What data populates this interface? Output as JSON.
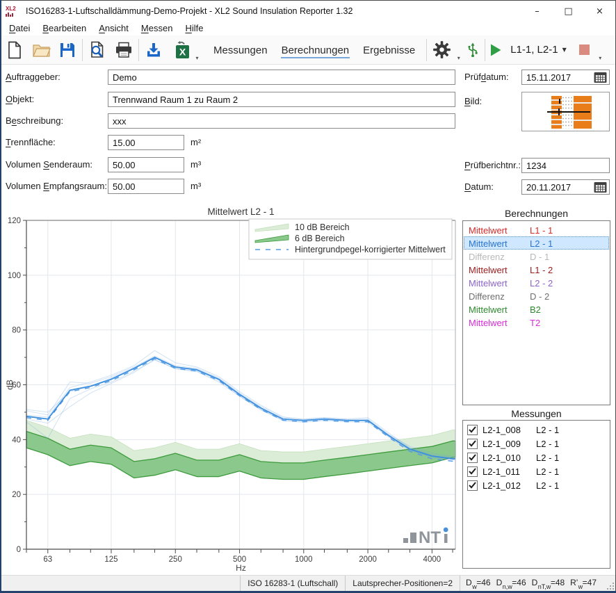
{
  "window": {
    "logo_text": "XL2",
    "title": "ISO16283-1-Luftschalldämmung-Demo-Projekt - XL2 Sound Insulation Reporter 1.32",
    "minimize": "–",
    "maximize": "□",
    "close": "×"
  },
  "menu": {
    "items": [
      {
        "label": "Datei",
        "ak": 0
      },
      {
        "label": "Bearbeiten",
        "ak": 0
      },
      {
        "label": "Ansicht",
        "ak": 0
      },
      {
        "label": "Messen",
        "ak": 0
      },
      {
        "label": "Hilfe",
        "ak": 0
      }
    ]
  },
  "toolbar": {
    "tabs": [
      {
        "label": "Messungen",
        "active": false
      },
      {
        "label": "Berechnungen",
        "active": true
      },
      {
        "label": "Ergebnisse",
        "active": false
      }
    ],
    "selector_label": "L1-1, L2-1",
    "overflow_glyph": "▾",
    "dropdown_glyph": "▼"
  },
  "form": {
    "left_fields": [
      {
        "label": "Auftraggeber:",
        "ak": 0,
        "value": "Demo",
        "unit": ""
      },
      {
        "label": "Objekt:",
        "ak": 0,
        "value": "Trennwand Raum 1 zu Raum 2",
        "unit": ""
      },
      {
        "label": "Beschreibung:",
        "ak": 1,
        "value": "xxx",
        "unit": ""
      },
      {
        "label": "Trennfläche:",
        "ak": 0,
        "value": "15.00",
        "unit": "m²"
      },
      {
        "label": "Volumen Senderaum:",
        "ak": 8,
        "value": "50.00",
        "unit": "m³"
      },
      {
        "label": "Volumen Empfangsraum:",
        "ak": 8,
        "value": "50.00",
        "unit": "m³"
      }
    ],
    "right_fields": {
      "pruefdatum": {
        "label": "Prüfdatum:",
        "ak": 4,
        "value": "15.11.2017"
      },
      "bild": {
        "label": "Bild:",
        "ak": 0
      },
      "pruefberichtnr": {
        "label": "Prüfberichtnr.:",
        "ak": 0,
        "value": "1234"
      },
      "datum": {
        "label": "Datum:",
        "ak": 0,
        "value": "20.11.2017"
      }
    }
  },
  "berechnungen": {
    "title": "Berechnungen",
    "items": [
      {
        "name": "Mittelwert",
        "value": "L1 - 1",
        "color": "#d42a2a",
        "selected": false
      },
      {
        "name": "Mittelwert",
        "value": "L2 - 1",
        "color": "#2873cf",
        "selected": true
      },
      {
        "name": "Differenz",
        "value": "D - 1",
        "color": "#b8b8b8",
        "selected": false
      },
      {
        "name": "Mittelwert",
        "value": "L1 - 2",
        "color": "#9b1b1b",
        "selected": false
      },
      {
        "name": "Mittelwert",
        "value": "L2 - 2",
        "color": "#8a63c9",
        "selected": false
      },
      {
        "name": "Differenz",
        "value": "D - 2",
        "color": "#6e6e6e",
        "selected": false
      },
      {
        "name": "Mittelwert",
        "value": "B2",
        "color": "#2d8a2d",
        "selected": false
      },
      {
        "name": "Mittelwert",
        "value": "T2",
        "color": "#d92ad9",
        "selected": false
      }
    ]
  },
  "messungen": {
    "title": "Messungen",
    "items": [
      {
        "name": "L2-1_008",
        "value": "L2 - 1",
        "checked": true
      },
      {
        "name": "L2-1_009",
        "value": "L2 - 1",
        "checked": true
      },
      {
        "name": "L2-1_010",
        "value": "L2 - 1",
        "checked": true
      },
      {
        "name": "L2-1_011",
        "value": "L2 - 1",
        "checked": true
      },
      {
        "name": "L2-1_012",
        "value": "L2 - 1",
        "checked": true
      }
    ]
  },
  "statusbar": {
    "segment_iso": "ISO 16283-1 (Luftschall)",
    "segment_speaker": "Lautsprecher-Positionen=2",
    "ratings": [
      {
        "base": "D",
        "sub": "w",
        "value": "=46"
      },
      {
        "base": "D",
        "sub": "n,w",
        "value": "=46"
      },
      {
        "base": "D",
        "sub": "nT,w",
        "value": "=48"
      },
      {
        "base": "R'",
        "sub": "w",
        "value": "=47"
      }
    ]
  },
  "chart_data": {
    "type": "line",
    "title": "Mittelwert L2 - 1",
    "xlabel": "Hz",
    "ylabel": "dB",
    "xscale": "log",
    "xlim": [
      50,
      5150
    ],
    "ylim": [
      0,
      120
    ],
    "y_major_ticks": [
      0,
      20,
      40,
      60,
      80,
      100,
      120
    ],
    "y_minor_ticks": [
      10,
      30,
      50,
      70,
      90,
      110
    ],
    "x_major_ticks": [
      63,
      125,
      250,
      500,
      1000,
      2000,
      4000
    ],
    "x_all_ticks": [
      50,
      63,
      80,
      100,
      125,
      160,
      200,
      250,
      315,
      400,
      500,
      630,
      800,
      1000,
      1250,
      1600,
      2000,
      2500,
      3150,
      4000,
      5000
    ],
    "frequencies_hz": [
      50,
      63,
      80,
      100,
      125,
      160,
      200,
      250,
      315,
      400,
      500,
      630,
      800,
      1000,
      1250,
      1600,
      2000,
      2500,
      3150,
      4000,
      5000
    ],
    "background_level_db": [
      37,
      34.5,
      30.5,
      32,
      31,
      26,
      27,
      29,
      26.5,
      26.5,
      28.5,
      26,
      25.5,
      25.5,
      26.5,
      27.5,
      28.5,
      29.5,
      30.5,
      31.5,
      33.5
    ],
    "bands": [
      {
        "name": "10 dB Bereich",
        "relative_to": "background_level_db",
        "low_offset_db": 6,
        "high_offset_db": 10,
        "swatch": "band-light"
      },
      {
        "name": "6 dB Bereich",
        "relative_to": "background_level_db",
        "low_offset_db": 0,
        "high_offset_db": 6,
        "swatch": "band-dark"
      }
    ],
    "mean_db": [
      48.5,
      47.5,
      58,
      59.5,
      62,
      66,
      70,
      66.5,
      65.5,
      62,
      56.5,
      51.5,
      47.5,
      47,
      47.5,
      47,
      47,
      41.5,
      36.5,
      34,
      33
    ],
    "corrected_mean_db": [
      48,
      47,
      57.5,
      59,
      61.5,
      65.5,
      69.5,
      66,
      65,
      61.5,
      56,
      51,
      47,
      46.5,
      47,
      46.5,
      46.5,
      40.9,
      35.7,
      33,
      32.1
    ],
    "individual": [
      {
        "name": "L2-1_008",
        "values": [
          50.5,
          49,
          61,
          60.5,
          63,
          66.5,
          70.5,
          67,
          66,
          62.5,
          57,
          52,
          48,
          47.5,
          48,
          47.5,
          48,
          42.5,
          37,
          34.5,
          33.5
        ]
      },
      {
        "name": "L2-1_009",
        "values": [
          46.5,
          40.5,
          55,
          58.5,
          61,
          65,
          69,
          66,
          65,
          61.5,
          56,
          51,
          47,
          46.3,
          47,
          46.5,
          46.3,
          41,
          36,
          33.5,
          32.5
        ]
      },
      {
        "name": "L2-1_010",
        "values": [
          49,
          48.2,
          59,
          61,
          63.5,
          67,
          72.5,
          68,
          66.5,
          63,
          57.5,
          52.5,
          48.3,
          47.3,
          48,
          47.3,
          47.5,
          42,
          37.5,
          35,
          33.8
        ]
      },
      {
        "name": "L2-1_011",
        "values": [
          47.5,
          46,
          52,
          57,
          60.5,
          64.5,
          69.3,
          65.8,
          64.8,
          61,
          55.8,
          50.8,
          47,
          46.6,
          47.2,
          46.8,
          46.8,
          41.2,
          36.2,
          33.6,
          32.8
        ]
      },
      {
        "name": "L2-1_012",
        "values": [
          51,
          50,
          57.5,
          59.5,
          62.5,
          66,
          70,
          66.3,
          65.3,
          62,
          56.3,
          51.3,
          47.6,
          47,
          47.6,
          47,
          47.2,
          41.8,
          36.8,
          34.2,
          33.2
        ]
      }
    ],
    "legend": [
      {
        "label": "10 dB Bereich",
        "swatch": "band-light"
      },
      {
        "label": "6 dB Bereich",
        "swatch": "band-dark"
      },
      {
        "label": "Hintergrundpegel-korrigierter Mittelwert",
        "swatch": "dashed"
      }
    ],
    "legend_position": "top-right",
    "grid": true,
    "watermark": "NTi",
    "colors": {
      "mean": "#3c8ede",
      "corrected": "#4f9ae4",
      "individual": "#6fa8e0",
      "band_light_fill": "#dcedd7",
      "band_light_stroke": "#c4e0bd",
      "band_dark_fill": "#8bc88b",
      "band_dark_stroke": "#3d9b3d",
      "grid": "#e3e7ee",
      "axis": "#4a4a4a",
      "frame": "#a8adb5",
      "text": "#3c3c3c",
      "legend_border": "#c9c9c9",
      "watermark": "#8f959b",
      "watermark_dot": "#4a90d9"
    }
  },
  "colors": {
    "selection_bg": "#cfe8ff",
    "selection_border": "#4f90d0",
    "tab_underline": "#7aa7d9",
    "play_green": "#2f9e44",
    "stop_salmon": "#d98b80",
    "usb_green": "#2e8b35",
    "excel_green": "#1e7145",
    "save_blue": "#1b66c9",
    "window_accent": "#24426e"
  }
}
